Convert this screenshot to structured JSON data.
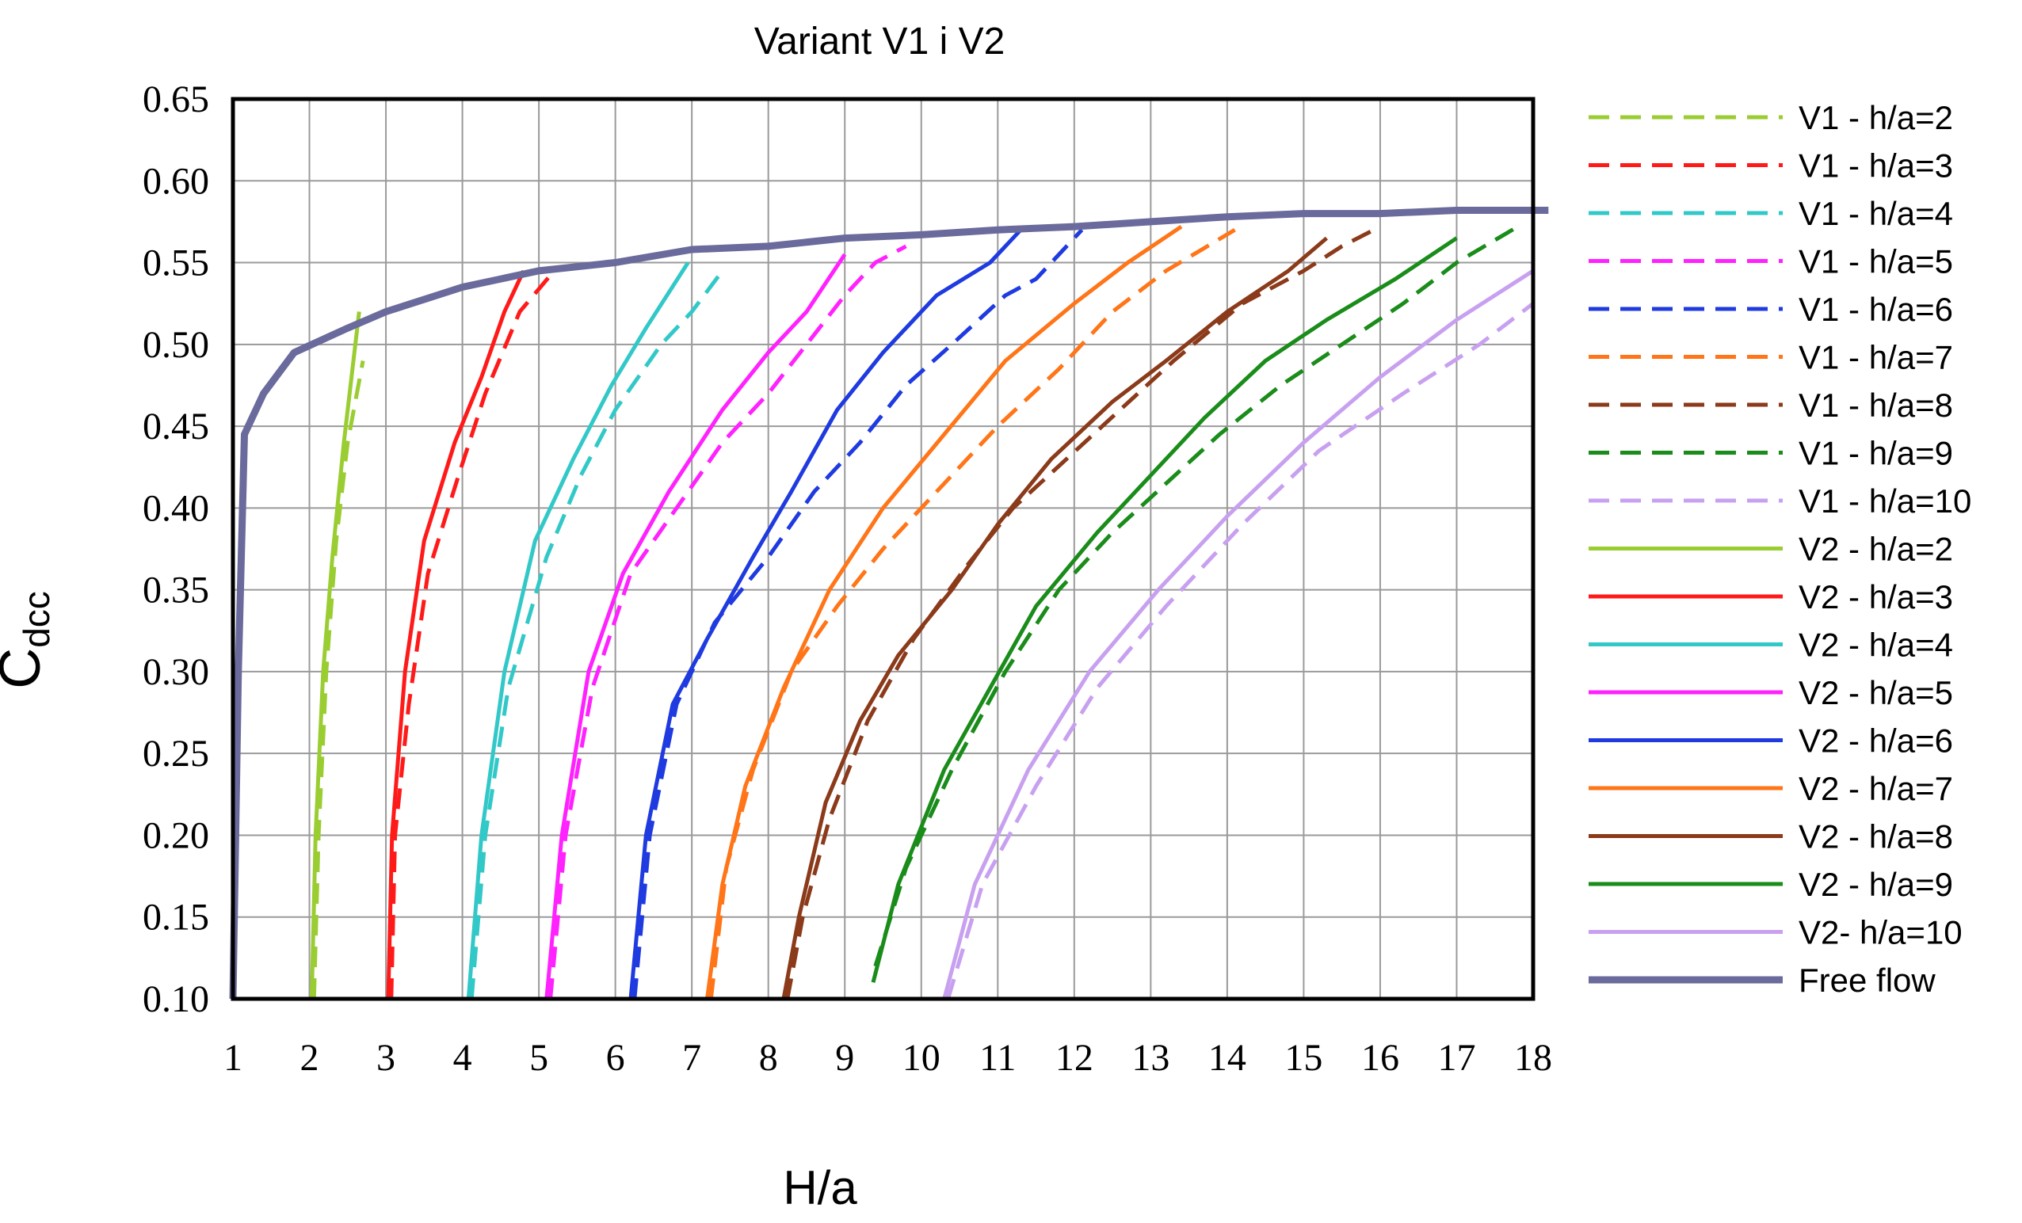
{
  "chart_data": {
    "type": "line",
    "title": "Variant V1 i V2",
    "xlabel": "H/a",
    "ylabel_main": "C",
    "ylabel_sub": "dcc",
    "xlim": [
      1,
      18
    ],
    "ylim": [
      0.1,
      0.65
    ],
    "grid": true,
    "legend_position": "right",
    "x_ticks": [
      "1",
      "2",
      "3",
      "4",
      "5",
      "6",
      "7",
      "8",
      "9",
      "10",
      "11",
      "12",
      "13",
      "14",
      "15",
      "16",
      "17",
      "18"
    ],
    "y_ticks": [
      "0.10",
      "0.15",
      "0.20",
      "0.25",
      "0.30",
      "0.35",
      "0.40",
      "0.45",
      "0.50",
      "0.55",
      "0.60",
      "0.65"
    ],
    "series": [
      {
        "name": "V1 - h/a=2",
        "color": "#9ACD32",
        "dash": true,
        "points": [
          [
            2.06,
            0.1
          ],
          [
            2.12,
            0.2
          ],
          [
            2.22,
            0.3
          ],
          [
            2.35,
            0.38
          ],
          [
            2.5,
            0.44
          ],
          [
            2.7,
            0.49
          ]
        ]
      },
      {
        "name": "V1 - h/a=3",
        "color": "#FF1A1A",
        "dash": true,
        "points": [
          [
            3.07,
            0.1
          ],
          [
            3.12,
            0.2
          ],
          [
            3.3,
            0.28
          ],
          [
            3.55,
            0.36
          ],
          [
            3.95,
            0.42
          ],
          [
            4.3,
            0.47
          ],
          [
            4.75,
            0.52
          ],
          [
            5.2,
            0.545
          ]
        ]
      },
      {
        "name": "V1 - h/a=4",
        "color": "#33C8C8",
        "dash": true,
        "points": [
          [
            4.12,
            0.1
          ],
          [
            4.3,
            0.2
          ],
          [
            4.6,
            0.29
          ],
          [
            5.1,
            0.37
          ],
          [
            5.55,
            0.42
          ],
          [
            6.0,
            0.46
          ],
          [
            6.6,
            0.5
          ],
          [
            7.0,
            0.52
          ],
          [
            7.4,
            0.545
          ]
        ]
      },
      {
        "name": "V1 - h/a=5",
        "color": "#FF22FF",
        "dash": true,
        "points": [
          [
            5.15,
            0.1
          ],
          [
            5.35,
            0.2
          ],
          [
            5.7,
            0.29
          ],
          [
            6.2,
            0.36
          ],
          [
            6.8,
            0.4
          ],
          [
            7.4,
            0.44
          ],
          [
            8.0,
            0.47
          ],
          [
            8.5,
            0.5
          ],
          [
            9.0,
            0.53
          ],
          [
            9.4,
            0.55
          ],
          [
            9.8,
            0.56
          ]
        ]
      },
      {
        "name": "V1 - h/a=6",
        "color": "#1F3BE0",
        "dash": true,
        "points": [
          [
            6.25,
            0.1
          ],
          [
            6.45,
            0.2
          ],
          [
            6.8,
            0.28
          ],
          [
            7.3,
            0.33
          ],
          [
            8.0,
            0.37
          ],
          [
            8.6,
            0.41
          ],
          [
            9.2,
            0.44
          ],
          [
            9.8,
            0.475
          ],
          [
            10.4,
            0.5
          ],
          [
            11.1,
            0.53
          ],
          [
            11.5,
            0.54
          ],
          [
            12.1,
            0.57
          ]
        ]
      },
      {
        "name": "V1 - h/a=7",
        "color": "#FF7518",
        "dash": true,
        "points": [
          [
            7.25,
            0.1
          ],
          [
            7.45,
            0.18
          ],
          [
            7.8,
            0.24
          ],
          [
            8.3,
            0.3
          ],
          [
            8.9,
            0.34
          ],
          [
            9.5,
            0.375
          ],
          [
            10.2,
            0.41
          ],
          [
            11.0,
            0.45
          ],
          [
            11.8,
            0.485
          ],
          [
            12.5,
            0.52
          ],
          [
            13.2,
            0.545
          ],
          [
            14.1,
            0.57
          ]
        ]
      },
      {
        "name": "V1 - h/a=8",
        "color": "#8B3A1A",
        "dash": true,
        "points": [
          [
            8.25,
            0.1
          ],
          [
            8.45,
            0.15
          ],
          [
            8.8,
            0.21
          ],
          [
            9.3,
            0.27
          ],
          [
            9.9,
            0.32
          ],
          [
            10.6,
            0.365
          ],
          [
            11.2,
            0.4
          ],
          [
            11.9,
            0.43
          ],
          [
            12.6,
            0.46
          ],
          [
            13.3,
            0.49
          ],
          [
            14.2,
            0.525
          ],
          [
            15.0,
            0.545
          ],
          [
            15.5,
            0.56
          ],
          [
            16.0,
            0.572
          ]
        ]
      },
      {
        "name": "V1 - h/a=9",
        "color": "#1A8C1A",
        "dash": true,
        "points": [
          [
            9.4,
            0.12
          ],
          [
            9.8,
            0.18
          ],
          [
            10.4,
            0.24
          ],
          [
            11.1,
            0.3
          ],
          [
            11.8,
            0.35
          ],
          [
            12.5,
            0.385
          ],
          [
            13.2,
            0.415
          ],
          [
            13.9,
            0.445
          ],
          [
            14.7,
            0.475
          ],
          [
            15.5,
            0.5
          ],
          [
            16.3,
            0.525
          ],
          [
            17.0,
            0.55
          ],
          [
            17.8,
            0.572
          ]
        ]
      },
      {
        "name": "V1 - h/a=10",
        "color": "#C8A0F0",
        "dash": true,
        "points": [
          [
            10.35,
            0.1
          ],
          [
            10.8,
            0.17
          ],
          [
            11.5,
            0.23
          ],
          [
            12.3,
            0.29
          ],
          [
            13.2,
            0.34
          ],
          [
            14.2,
            0.39
          ],
          [
            15.2,
            0.435
          ],
          [
            16.3,
            0.47
          ],
          [
            17.3,
            0.5
          ],
          [
            18.0,
            0.525
          ]
        ]
      },
      {
        "name": "V2 - h/a=2",
        "color": "#9ACD32",
        "dash": false,
        "points": [
          [
            2.03,
            0.1
          ],
          [
            2.08,
            0.2
          ],
          [
            2.18,
            0.3
          ],
          [
            2.3,
            0.37
          ],
          [
            2.45,
            0.44
          ],
          [
            2.65,
            0.52
          ]
        ]
      },
      {
        "name": "V2 - h/a=3",
        "color": "#FF1A1A",
        "dash": false,
        "points": [
          [
            3.03,
            0.1
          ],
          [
            3.08,
            0.2
          ],
          [
            3.25,
            0.3
          ],
          [
            3.5,
            0.38
          ],
          [
            3.9,
            0.44
          ],
          [
            4.25,
            0.48
          ],
          [
            4.55,
            0.52
          ],
          [
            4.8,
            0.545
          ]
        ]
      },
      {
        "name": "V2 - h/a=4",
        "color": "#33C8C8",
        "dash": false,
        "points": [
          [
            4.08,
            0.1
          ],
          [
            4.25,
            0.2
          ],
          [
            4.55,
            0.3
          ],
          [
            4.95,
            0.38
          ],
          [
            5.45,
            0.43
          ],
          [
            5.95,
            0.475
          ],
          [
            6.4,
            0.51
          ],
          [
            6.95,
            0.55
          ]
        ]
      },
      {
        "name": "V2 - h/a=5",
        "color": "#FF22FF",
        "dash": false,
        "points": [
          [
            5.1,
            0.1
          ],
          [
            5.3,
            0.2
          ],
          [
            5.65,
            0.3
          ],
          [
            6.1,
            0.36
          ],
          [
            6.7,
            0.41
          ],
          [
            7.4,
            0.46
          ],
          [
            8.0,
            0.495
          ],
          [
            8.5,
            0.52
          ],
          [
            9.0,
            0.555
          ]
        ]
      },
      {
        "name": "V2 - h/a=6",
        "color": "#1F3BE0",
        "dash": false,
        "points": [
          [
            6.2,
            0.1
          ],
          [
            6.4,
            0.2
          ],
          [
            6.75,
            0.28
          ],
          [
            7.2,
            0.32
          ],
          [
            7.8,
            0.37
          ],
          [
            8.3,
            0.41
          ],
          [
            8.9,
            0.46
          ],
          [
            9.5,
            0.495
          ],
          [
            10.2,
            0.53
          ],
          [
            10.9,
            0.55
          ],
          [
            11.3,
            0.57
          ]
        ]
      },
      {
        "name": "V2 - h/a=7",
        "color": "#FF7518",
        "dash": false,
        "points": [
          [
            7.2,
            0.1
          ],
          [
            7.4,
            0.17
          ],
          [
            7.7,
            0.23
          ],
          [
            8.2,
            0.29
          ],
          [
            8.8,
            0.35
          ],
          [
            9.5,
            0.4
          ],
          [
            10.3,
            0.445
          ],
          [
            11.1,
            0.49
          ],
          [
            12.0,
            0.525
          ],
          [
            12.7,
            0.55
          ],
          [
            13.4,
            0.572
          ]
        ]
      },
      {
        "name": "V2 - h/a=8",
        "color": "#8B3A1A",
        "dash": false,
        "points": [
          [
            8.2,
            0.1
          ],
          [
            8.4,
            0.15
          ],
          [
            8.75,
            0.22
          ],
          [
            9.2,
            0.27
          ],
          [
            9.7,
            0.31
          ],
          [
            10.4,
            0.35
          ],
          [
            11.0,
            0.39
          ],
          [
            11.7,
            0.43
          ],
          [
            12.5,
            0.465
          ],
          [
            13.2,
            0.49
          ],
          [
            14.0,
            0.52
          ],
          [
            14.8,
            0.545
          ],
          [
            15.3,
            0.565
          ]
        ]
      },
      {
        "name": "V2 - h/a=9",
        "color": "#1A8C1A",
        "dash": false,
        "points": [
          [
            9.37,
            0.11
          ],
          [
            9.7,
            0.17
          ],
          [
            10.3,
            0.24
          ],
          [
            10.9,
            0.29
          ],
          [
            11.5,
            0.34
          ],
          [
            12.3,
            0.385
          ],
          [
            13.0,
            0.42
          ],
          [
            13.7,
            0.455
          ],
          [
            14.5,
            0.49
          ],
          [
            15.3,
            0.515
          ],
          [
            16.2,
            0.54
          ],
          [
            17.0,
            0.565
          ]
        ]
      },
      {
        "name": "V2- h/a=10",
        "color": "#C8A0F0",
        "dash": false,
        "points": [
          [
            10.3,
            0.1
          ],
          [
            10.7,
            0.17
          ],
          [
            11.4,
            0.24
          ],
          [
            12.2,
            0.3
          ],
          [
            13.1,
            0.35
          ],
          [
            14.0,
            0.395
          ],
          [
            15.0,
            0.44
          ],
          [
            16.0,
            0.48
          ],
          [
            17.0,
            0.515
          ],
          [
            18.0,
            0.545
          ]
        ]
      },
      {
        "name": "Free flow",
        "color": "#6A6A9C",
        "dash": false,
        "width": 9,
        "points": [
          [
            1.0,
            0.1
          ],
          [
            1.07,
            0.3
          ],
          [
            1.15,
            0.445
          ],
          [
            1.4,
            0.47
          ],
          [
            1.8,
            0.495
          ],
          [
            2.5,
            0.51
          ],
          [
            3.0,
            0.52
          ],
          [
            4.0,
            0.535
          ],
          [
            5.0,
            0.545
          ],
          [
            6.0,
            0.55
          ],
          [
            7.0,
            0.558
          ],
          [
            8.0,
            0.56
          ],
          [
            9.0,
            0.565
          ],
          [
            10.0,
            0.567
          ],
          [
            11.0,
            0.57
          ],
          [
            12.0,
            0.572
          ],
          [
            13.0,
            0.575
          ],
          [
            14.0,
            0.578
          ],
          [
            15.0,
            0.58
          ],
          [
            16.0,
            0.58
          ],
          [
            17.0,
            0.582
          ],
          [
            18.0,
            0.582
          ],
          [
            18.2,
            0.582
          ]
        ]
      }
    ]
  }
}
